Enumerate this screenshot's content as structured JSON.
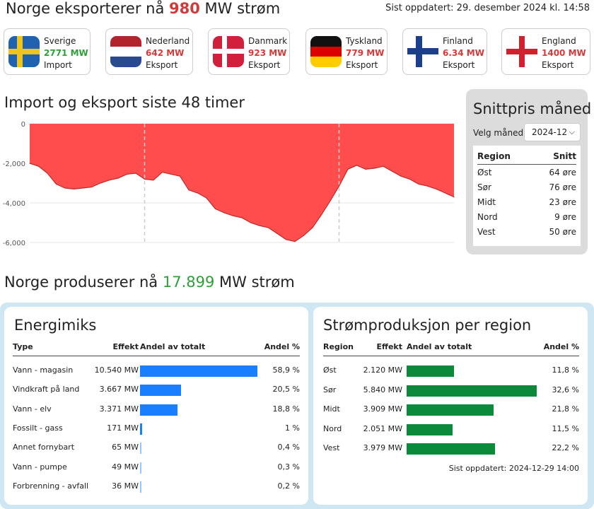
{
  "header": {
    "export_prefix": "Norge eksporterer nå",
    "export_value": "980",
    "export_suffix": "MW strøm",
    "updated": "Sist oppdatert: 29. desember 2024 kl. 14:58"
  },
  "countries": [
    {
      "name": "Sverige",
      "value": "2771 MW",
      "direction": "Import",
      "flag": "sweden-flag-icon"
    },
    {
      "name": "Nederland",
      "value": "642 MW",
      "direction": "Eksport",
      "flag": "netherlands-flag-icon"
    },
    {
      "name": "Danmark",
      "value": "923 MW",
      "direction": "Eksport",
      "flag": "denmark-flag-icon"
    },
    {
      "name": "Tyskland",
      "value": "779 MW",
      "direction": "Eksport",
      "flag": "germany-flag-icon"
    },
    {
      "name": "Finland",
      "value": "6.34 MW",
      "direction": "Eksport",
      "flag": "finland-flag-icon"
    },
    {
      "name": "England",
      "value": "1400 MW",
      "direction": "Eksport",
      "flag": "england-flag-icon"
    }
  ],
  "colors": {
    "import": "#2f9e3a",
    "export": "#d33a3a",
    "area_fill": "#ff4d4d",
    "energy_bar": "#1a7fff",
    "region_bar": "#0b8a3c"
  },
  "chart_section": {
    "title": "Import og eksport siste 48 timer"
  },
  "price_panel": {
    "title": "Snittpris måned",
    "month_label": "Velg måned",
    "month_value": "2024-12",
    "col_region": "Region",
    "col_avg": "Snitt",
    "rows": [
      {
        "region": "Øst",
        "price": "64 øre"
      },
      {
        "region": "Sør",
        "price": "76 øre"
      },
      {
        "region": "Midt",
        "price": "23 øre"
      },
      {
        "region": "Nord",
        "price": "9 øre"
      },
      {
        "region": "Vest",
        "price": "50 øre"
      }
    ]
  },
  "production": {
    "prefix": "Norge produserer nå",
    "value": "17.899",
    "suffix": "MW strøm"
  },
  "energimiks": {
    "title": "Energimiks",
    "col_type": "Type",
    "col_effect": "Effekt",
    "col_share_bar": "Andel av totalt",
    "col_share": "Andel %",
    "rows": [
      {
        "type": "Vann - magasin",
        "effect": "10.540 MW",
        "share": "58,9 %",
        "pct": 58.9
      },
      {
        "type": "Vindkraft på land",
        "effect": "3.667 MW",
        "share": "20,5 %",
        "pct": 20.5
      },
      {
        "type": "Vann - elv",
        "effect": "3.371 MW",
        "share": "18,8 %",
        "pct": 18.8
      },
      {
        "type": "Fossilt - gass",
        "effect": "171 MW",
        "share": "1 %",
        "pct": 1.0
      },
      {
        "type": "Annet fornybart",
        "effect": "65 MW",
        "share": "0,4 %",
        "pct": 0.4
      },
      {
        "type": "Vann - pumpe",
        "effect": "49 MW",
        "share": "0,3 %",
        "pct": 0.3
      },
      {
        "type": "Forbrenning - avfall",
        "effect": "36 MW",
        "share": "0,2 %",
        "pct": 0.2
      }
    ]
  },
  "region_production": {
    "title": "Strømproduksjon per region",
    "col_region": "Region",
    "col_effect": "Effekt",
    "col_share_bar": "Andel av totalt",
    "col_share": "Andel %",
    "rows": [
      {
        "region": "Øst",
        "effect": "2.120 MW",
        "share": "11,8 %",
        "pct": 11.8
      },
      {
        "region": "Sør",
        "effect": "5.840 MW",
        "share": "32,6 %",
        "pct": 32.6
      },
      {
        "region": "Midt",
        "effect": "3.909 MW",
        "share": "21,8 %",
        "pct": 21.8
      },
      {
        "region": "Nord",
        "effect": "2.051 MW",
        "share": "11,5 %",
        "pct": 11.5
      },
      {
        "region": "Vest",
        "effect": "3.979 MW",
        "share": "22,2 %",
        "pct": 22.2
      }
    ],
    "updated": "Sist oppdatert: 2024-12-29 14:00"
  },
  "chart_data": {
    "type": "area",
    "title": "Import og eksport siste 48 timer",
    "ylim": [
      -6000,
      0
    ],
    "yticks": [
      0,
      -2000,
      -4000,
      -6000
    ],
    "ytick_labels": [
      "0",
      "-2,000",
      "-4,000",
      "-6,000"
    ],
    "grid": true,
    "x": [
      0,
      1,
      2,
      3,
      4,
      5,
      6,
      7,
      8,
      9,
      10,
      11,
      12,
      13,
      14,
      15,
      16,
      17,
      18,
      19,
      20,
      21,
      22,
      23,
      24,
      25,
      26,
      27,
      28,
      29,
      30,
      31,
      32,
      33,
      34,
      35,
      36,
      37,
      38,
      39,
      40,
      41,
      42,
      43,
      44,
      45,
      46,
      47,
      48
    ],
    "series": [
      {
        "values": [
          -2000,
          -2150,
          -2500,
          -3050,
          -3250,
          -3300,
          -3250,
          -3200,
          -3000,
          -2850,
          -2750,
          -2550,
          -2500,
          -2800,
          -2850,
          -2450,
          -2550,
          -2650,
          -3350,
          -3500,
          -3750,
          -4300,
          -4500,
          -4650,
          -4750,
          -5000,
          -5150,
          -5250,
          -5550,
          -5850,
          -5950,
          -5650,
          -5250,
          -4600,
          -3900,
          -3150,
          -2300,
          -2100,
          -2300,
          -2250,
          -2150,
          -2400,
          -2650,
          -2800,
          -3050,
          -3150,
          -3300,
          -3500,
          -3700
        ]
      }
    ],
    "vertical_markers_x": [
      13,
      35
    ]
  }
}
